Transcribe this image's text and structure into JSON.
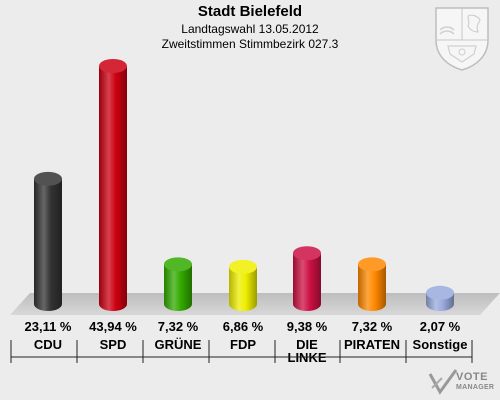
{
  "title": "Stadt Bielefeld",
  "subtitle1": "Landtagswahl 13.05.2012",
  "subtitle2": "Zweitstimmen Stimmbezirk 027.3",
  "logo": {
    "line1": "VOTE",
    "line2": "MANAGER"
  },
  "crest_icon": "nrw-coat-of-arms-icon",
  "chart_data": {
    "type": "bar",
    "categories": [
      "CDU",
      "SPD",
      "GRÜNE",
      "FDP",
      "DIE LINKE",
      "PIRATEN",
      "Sonstige"
    ],
    "category_lines": [
      [
        "CDU"
      ],
      [
        "SPD"
      ],
      [
        "GRÜNE"
      ],
      [
        "FDP"
      ],
      [
        "DIE",
        "LINKE"
      ],
      [
        "PIRATEN"
      ],
      [
        "Sonstige"
      ]
    ],
    "values": [
      23.11,
      43.94,
      7.32,
      6.86,
      9.38,
      7.32,
      2.07
    ],
    "value_labels": [
      "23,11 %",
      "43,94 %",
      "7,32 %",
      "6,86 %",
      "9,38 %",
      "7,32 %",
      "2,07 %"
    ],
    "colors": [
      "#333333",
      "#cc0011",
      "#33aa00",
      "#eeee00",
      "#cc1144",
      "#ff8800",
      "#99aadd"
    ],
    "ylim": [
      0,
      43.94
    ],
    "grid": false,
    "legend": "none"
  }
}
